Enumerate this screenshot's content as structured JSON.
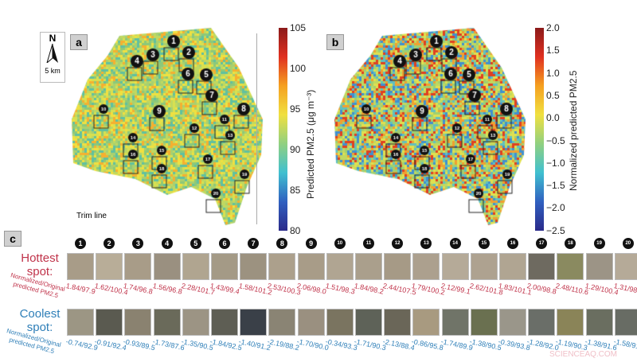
{
  "panel_a": {
    "label": "a",
    "north": "N",
    "scale": "5 km",
    "trim_line": "Trim line",
    "colorbar": {
      "title": "Predicted PM2.5 (μg m⁻³)",
      "ticks": [
        "105",
        "100",
        "95",
        "90",
        "85",
        "80"
      ]
    }
  },
  "panel_b": {
    "label": "b",
    "colorbar": {
      "title": "Normalized predicted PM2.5",
      "ticks": [
        "2.0",
        "1.5",
        "1.0",
        "0.5",
        "0.0",
        "−0.5",
        "−1.0",
        "−1.5",
        "−2.0",
        "−2.5"
      ]
    }
  },
  "panel_c": {
    "label": "c",
    "spot_numbers": [
      "1",
      "2",
      "3",
      "4",
      "5",
      "6",
      "7",
      "8",
      "9",
      "10",
      "11",
      "12",
      "13",
      "14",
      "15",
      "16",
      "17",
      "18",
      "19",
      "20"
    ],
    "hottest": {
      "label": "Hottest spot:",
      "sublabel": "Normalized/Original predicted PM2.5",
      "color": "#c0334a",
      "values": [
        "1.84/97.9",
        "1.62/100.4",
        "1.74/96.8",
        "1.56/96.8",
        "2.28/101.7",
        "1.43/99.4",
        "1.58/101.2",
        "2.53/100.3",
        "2.06/98.0",
        "1.51/98.3",
        "1.84/98.2",
        "2.44/107.5",
        "1.79/100.2",
        "2.12/99.1",
        "2.62/101.8",
        "1.83/101.1",
        "2.00/98.8",
        "2.48/110.6",
        "1.29/100.4",
        "1.31/98.6"
      ]
    },
    "coolest": {
      "label": "Coolest spot:",
      "sublabel": "Normalized/Original predicted PM2.5",
      "color": "#2f7fb8",
      "values": [
        "-0.74/92.9",
        "-0.91/92.4",
        "-0.93/89.5",
        "-1.73/87.6",
        "-1.35/90.5",
        "-1.84/92.5",
        "-1.40/91.2",
        "-2.19/88.2",
        "-1.70/90.0",
        "-0.34/93.3",
        "-1.71/90.3",
        "-2.13/88.4",
        "-0.86/95.8",
        "-1.74/89.9",
        "-1.38/90.5",
        "-0.39/93.8",
        "-1.28/92.0",
        "-1.19/90.3",
        "-1.38/91.6",
        "-1.58/91.6"
      ]
    }
  },
  "watermark": "SCIENCEAQ.COM"
}
